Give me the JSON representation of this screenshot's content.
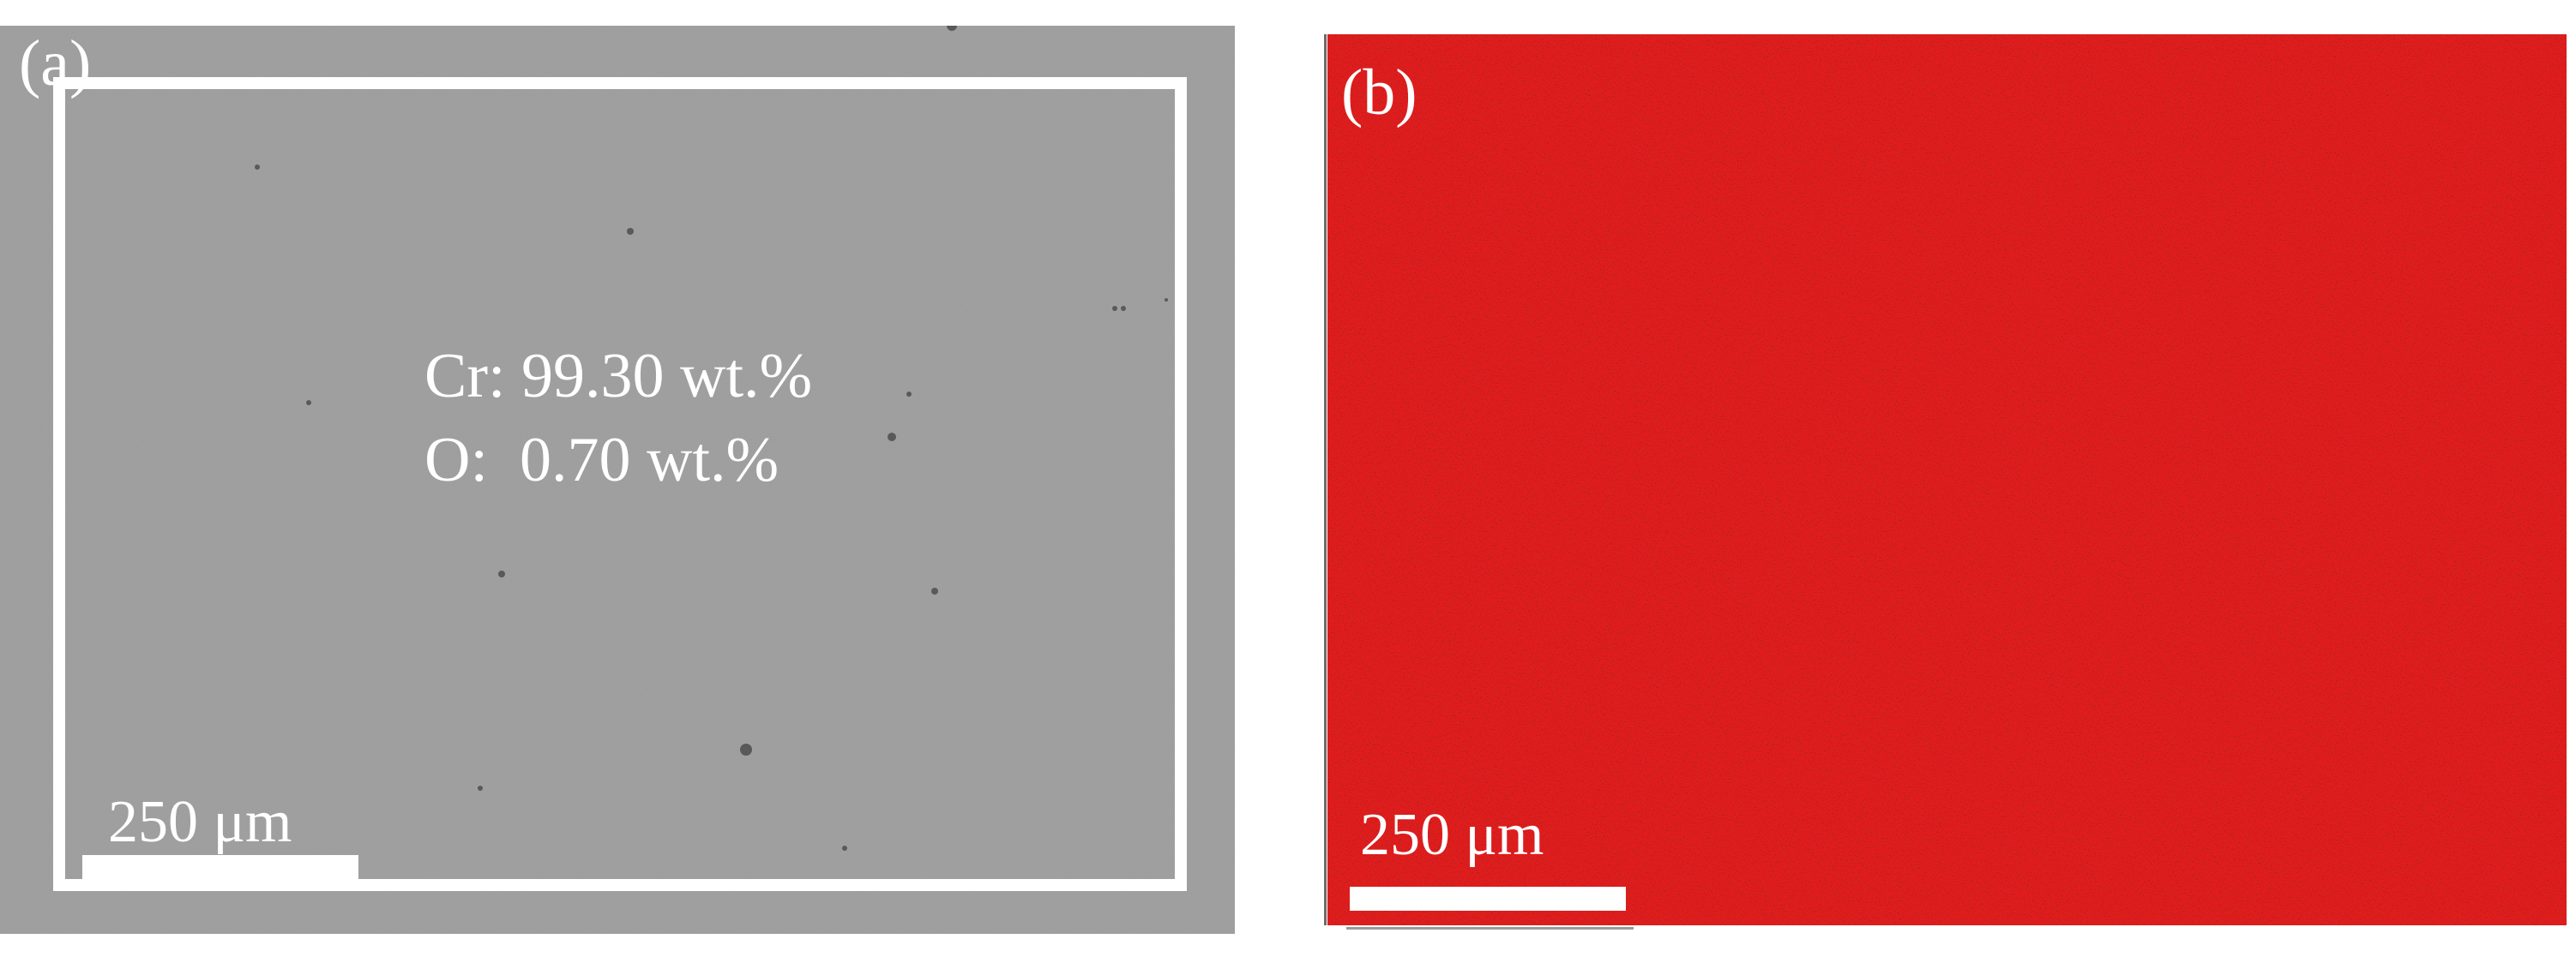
{
  "figure": {
    "panel_a": {
      "label": "(a)",
      "composition": {
        "cr_line": "Cr: 99.30 wt.%",
        "o_line": "O:  0.70 wt.%"
      },
      "scale_bar_label": "250 μm",
      "colors": {
        "background": "#9b9b9b",
        "annotation": "#ffffff"
      }
    },
    "panel_b": {
      "label": "(b)",
      "scale_bar_label": "250 μm",
      "colors": {
        "map_red": "#e01a1a",
        "map_dark": "#3a0505"
      }
    }
  }
}
